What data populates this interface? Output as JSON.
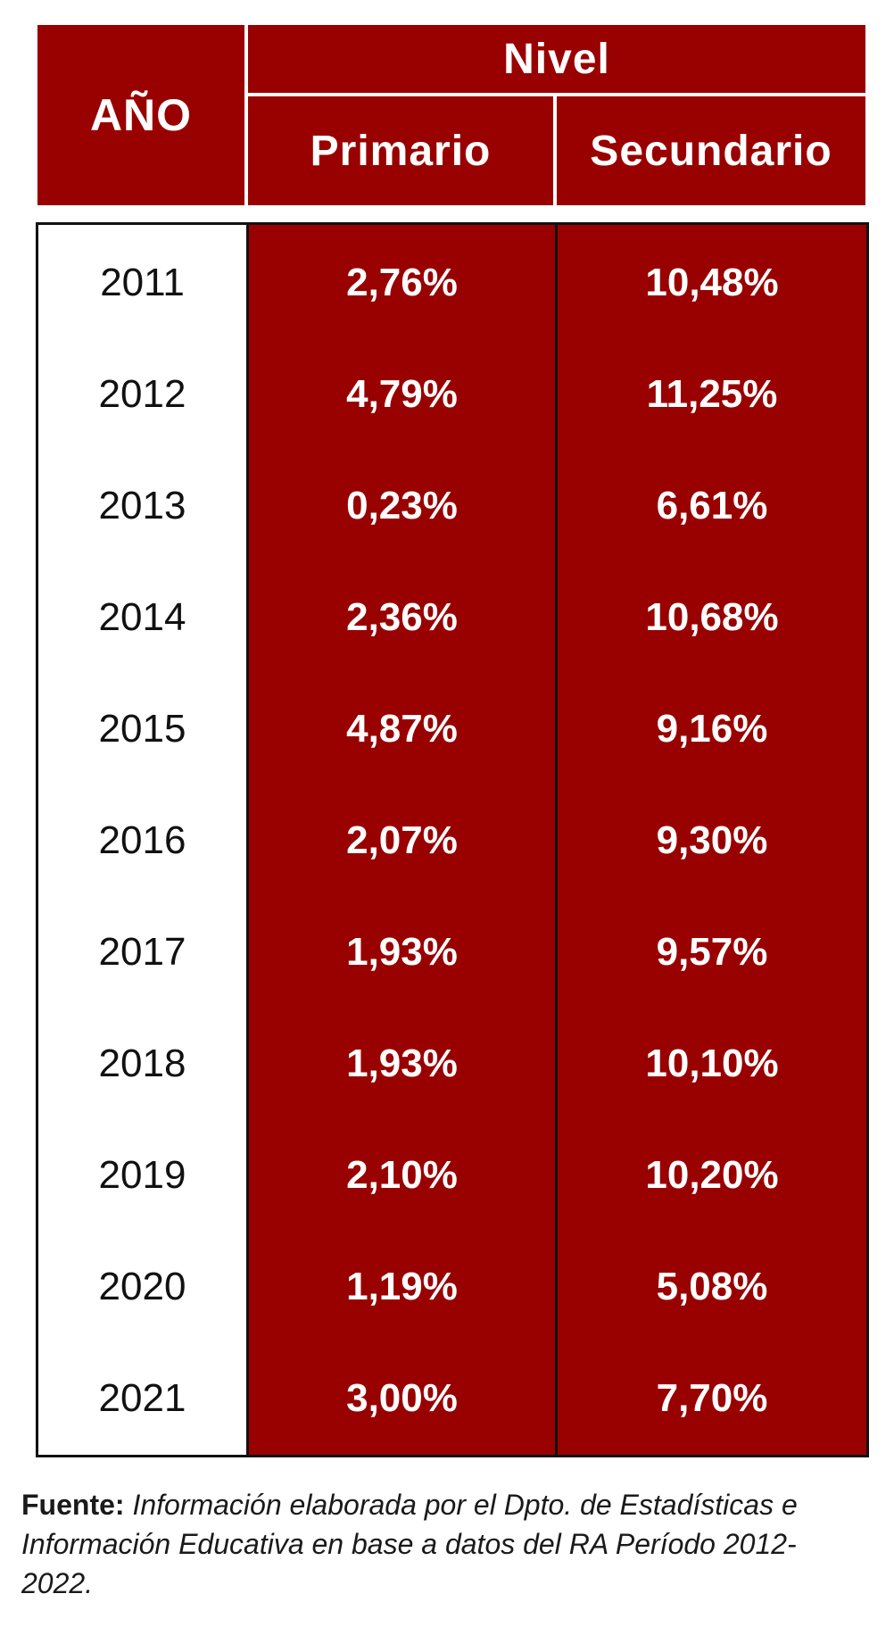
{
  "table": {
    "header": {
      "year": "AÑO",
      "group": "Nivel",
      "primary": "Primario",
      "secondary": "Secundario"
    },
    "rows": [
      {
        "year": "2011",
        "primary": "2,76%",
        "secondary": "10,48%"
      },
      {
        "year": "2012",
        "primary": "4,79%",
        "secondary": "11,25%"
      },
      {
        "year": "2013",
        "primary": "0,23%",
        "secondary": "6,61%"
      },
      {
        "year": "2014",
        "primary": "2,36%",
        "secondary": "10,68%"
      },
      {
        "year": "2015",
        "primary": "4,87%",
        "secondary": "9,16%"
      },
      {
        "year": "2016",
        "primary": "2,07%",
        "secondary": "9,30%"
      },
      {
        "year": "2017",
        "primary": "1,93%",
        "secondary": "9,57%"
      },
      {
        "year": "2018",
        "primary": "1,93%",
        "secondary": "10,10%"
      },
      {
        "year": "2019",
        "primary": "2,10%",
        "secondary": "10,20%"
      },
      {
        "year": "2020",
        "primary": "1,19%",
        "secondary": "5,08%"
      },
      {
        "year": "2021",
        "primary": "3,00%",
        "secondary": "7,70%"
      }
    ]
  },
  "footnote": {
    "label": "Fuente:",
    "text": "Información elaborada por el Dpto. de Estadísticas e Información Educativa en base a datos del RA Período 2012-2022."
  },
  "colors": {
    "header_bg": "#990000",
    "data_bg": "#990000",
    "border": "#111111"
  }
}
